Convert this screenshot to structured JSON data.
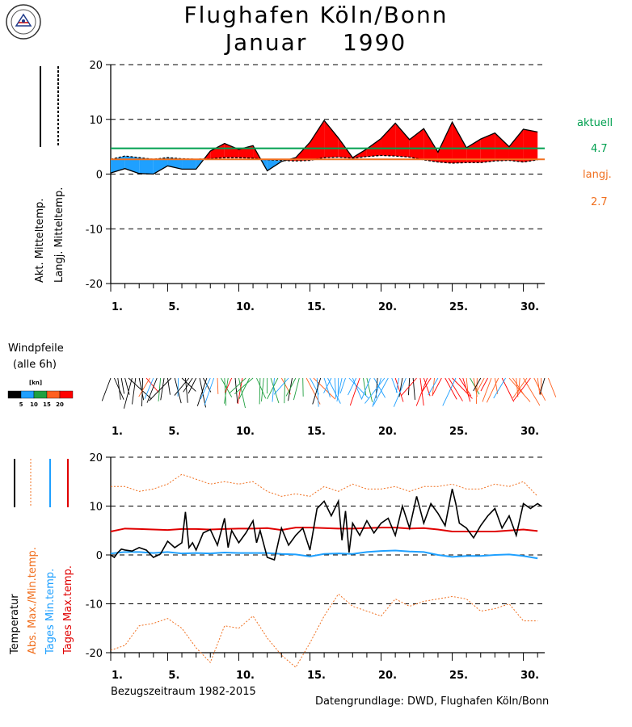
{
  "header": {
    "title_line1": "Flughafen Köln/Bonn",
    "title_month": "Januar",
    "title_year": "1990",
    "logo_icon": "weather-station-logo-icon"
  },
  "legend_top": {
    "current_label": "aktuell",
    "current_value": "4.7",
    "current_color": "#00a050",
    "longterm_label": "langj.",
    "longterm_value": "2.7",
    "longterm_color": "#f07020",
    "ylabel_current": "Akt. Mitteltemp.",
    "ylabel_longterm": "Langj. Mitteltemp."
  },
  "wind": {
    "label_line1": "Windpfeile",
    "label_line2": "(alle 6h)",
    "unit": "[kn]",
    "scale_ticks": [
      "5",
      "10",
      "15",
      "20"
    ],
    "scale_colors": [
      "#000000",
      "#1fa0ff",
      "#20a040",
      "#ff6020",
      "#ff0000"
    ]
  },
  "legend_bottom": {
    "temperature": "Temperatur",
    "abs_maxmin": "Abs. Max./Min.temp.",
    "day_min": "Tages Min.temp.",
    "day_max": "Tages Max.temp."
  },
  "footer": {
    "reference": "Bezugszeitraum 1982-2015",
    "source": "Datengrundlage: DWD, Flughafen Köln/Bonn"
  },
  "x_ticks": [
    "1.",
    "5.",
    "10.",
    "15.",
    "20.",
    "25.",
    "30."
  ],
  "chart_data": [
    {
      "type": "area",
      "title": "Flughafen Köln/Bonn Januar 1990",
      "ylim": [
        -20,
        20
      ],
      "yticks": [
        -20,
        -10,
        0,
        10,
        20
      ],
      "x": [
        1,
        2,
        3,
        4,
        5,
        6,
        7,
        8,
        9,
        10,
        11,
        12,
        13,
        14,
        15,
        16,
        17,
        18,
        19,
        20,
        21,
        22,
        23,
        24,
        25,
        26,
        27,
        28,
        29,
        30,
        31
      ],
      "series": [
        {
          "name": "Akt. Mitteltemp.",
          "values": [
            0.2,
            1.0,
            0.1,
            0.0,
            1.5,
            0.9,
            0.9,
            4.2,
            5.6,
            4.5,
            5.2,
            0.6,
            2.3,
            3.0,
            5.8,
            9.8,
            6.6,
            3.0,
            4.6,
            6.5,
            9.3,
            6.3,
            8.3,
            4.0,
            9.5,
            4.8,
            6.4,
            7.5,
            5.0,
            8.2,
            7.7
          ]
        },
        {
          "name": "Langj. Mitteltemp.",
          "values": [
            2.7,
            3.3,
            3.0,
            2.7,
            3.0,
            2.8,
            2.7,
            2.8,
            3.0,
            3.0,
            2.9,
            2.6,
            2.5,
            2.4,
            2.5,
            3.0,
            3.1,
            2.9,
            3.2,
            3.4,
            3.3,
            3.1,
            2.6,
            2.2,
            2.0,
            2.1,
            2.1,
            2.4,
            2.5,
            2.2,
            2.6
          ]
        }
      ],
      "reference_lines": [
        {
          "name": "aktuell",
          "value": 4.7
        },
        {
          "name": "langj.",
          "value": 2.7
        }
      ]
    },
    {
      "type": "line",
      "ylim": [
        -20,
        20
      ],
      "yticks": [
        -20,
        -10,
        0,
        10,
        20
      ],
      "series": [
        {
          "name": "Abs. Max.temp.",
          "x": [
            1,
            2,
            3,
            4,
            5,
            6,
            7,
            8,
            9,
            10,
            11,
            12,
            13,
            14,
            15,
            16,
            17,
            18,
            19,
            20,
            21,
            22,
            23,
            24,
            25,
            26,
            27,
            28,
            29,
            30,
            31
          ],
          "values": [
            14,
            14,
            13,
            13.5,
            14.5,
            16.5,
            15.5,
            14.5,
            15,
            14.5,
            15,
            13,
            12,
            12.5,
            12,
            14,
            13,
            14.5,
            13.5,
            13.5,
            14,
            13,
            14,
            14,
            14.5,
            13.5,
            13.5,
            14.5,
            14,
            15,
            12
          ]
        },
        {
          "name": "Abs. Min.temp.",
          "x": [
            1,
            2,
            3,
            4,
            5,
            6,
            7,
            8,
            9,
            10,
            11,
            12,
            13,
            14,
            15,
            16,
            17,
            18,
            19,
            20,
            21,
            22,
            23,
            24,
            25,
            26,
            27,
            28,
            29,
            30,
            31
          ],
          "values": [
            -19.5,
            -18.5,
            -14.5,
            -14,
            -13,
            -15,
            -19,
            -22,
            -14.5,
            -15,
            -12.5,
            -17,
            -20.5,
            -23,
            -18,
            -12.5,
            -8,
            -10.5,
            -11.5,
            -12.5,
            -9,
            -10.5,
            -9.5,
            -9,
            -8.5,
            -9,
            -11.5,
            -11,
            -10,
            -13.5,
            -13.5
          ]
        },
        {
          "name": "Tages Min.temp.",
          "x": [
            1,
            2,
            3,
            4,
            5,
            6,
            7,
            8,
            9,
            10,
            11,
            12,
            13,
            14,
            15,
            16,
            17,
            18,
            19,
            20,
            21,
            22,
            23,
            24,
            25,
            26,
            27,
            28,
            29,
            30,
            31
          ],
          "values": [
            0.3,
            0.6,
            0.6,
            0.4,
            0.6,
            0.3,
            0.4,
            0.3,
            0.5,
            0.4,
            0.4,
            0.4,
            0.2,
            0.1,
            -0.3,
            0.2,
            0.3,
            0.2,
            0.6,
            0.8,
            0.9,
            0.7,
            0.6,
            0.0,
            -0.4,
            -0.2,
            -0.2,
            0.0,
            0.1,
            -0.2,
            -0.7
          ]
        },
        {
          "name": "Tages Max.temp.",
          "x": [
            1,
            2,
            3,
            4,
            5,
            6,
            7,
            8,
            9,
            10,
            11,
            12,
            13,
            14,
            15,
            16,
            17,
            18,
            19,
            20,
            21,
            22,
            23,
            24,
            25,
            26,
            27,
            28,
            29,
            30,
            31
          ],
          "values": [
            4.8,
            5.4,
            5.3,
            5.2,
            5.1,
            5.3,
            5.3,
            5.2,
            5.3,
            5.4,
            5.4,
            5.5,
            5.1,
            5.6,
            5.6,
            5.5,
            5.4,
            5.4,
            5.5,
            5.6,
            5.6,
            5.4,
            5.5,
            5.2,
            4.8,
            4.8,
            4.8,
            4.8,
            5.0,
            5.2,
            4.9
          ]
        },
        {
          "name": "Temperatur",
          "x": [
            1,
            1.25,
            1.5,
            1.75,
            2,
            2.5,
            3,
            3.5,
            4,
            4.5,
            5,
            5.5,
            6,
            6.25,
            6.5,
            6.75,
            7,
            7.5,
            8,
            8.5,
            9,
            9.25,
            9.5,
            10,
            10.5,
            11,
            11.25,
            11.5,
            12,
            12.5,
            13,
            13.5,
            14,
            14.5,
            15,
            15.5,
            16,
            16.5,
            17,
            17.25,
            17.5,
            17.75,
            18,
            18.5,
            19,
            19.5,
            20,
            20.5,
            21,
            21.5,
            22,
            22.5,
            23,
            23.5,
            24,
            24.5,
            25,
            25.25,
            25.5,
            26,
            26.5,
            27,
            27.5,
            28,
            28.5,
            29,
            29.5,
            30,
            30.5,
            31,
            31.25
          ],
          "values": [
            0,
            -0.5,
            0.5,
            1.2,
            1.0,
            0.8,
            1.5,
            1.0,
            -0.5,
            0.2,
            2.8,
            1.5,
            2.5,
            8.8,
            1.5,
            2.5,
            1.0,
            4.5,
            5.2,
            2.0,
            7.5,
            1.5,
            5.0,
            2.5,
            4.5,
            7.0,
            2.5,
            5.0,
            -0.5,
            -1.0,
            5.5,
            2.0,
            4.0,
            5.5,
            1.0,
            9.5,
            11.0,
            8.0,
            11.0,
            3.0,
            9.0,
            0.5,
            6.5,
            4.0,
            7.0,
            4.5,
            6.5,
            7.5,
            4.0,
            10.0,
            5.5,
            12.0,
            6.5,
            10.5,
            8.5,
            6.0,
            13.5,
            10.5,
            6.5,
            5.5,
            3.5,
            6.0,
            8.0,
            9.5,
            5.5,
            8.0,
            4.0,
            10.5,
            9.5,
            10.5,
            10.0
          ]
        }
      ],
      "annotation": "Bezugszeitraum 1982-2015"
    }
  ]
}
